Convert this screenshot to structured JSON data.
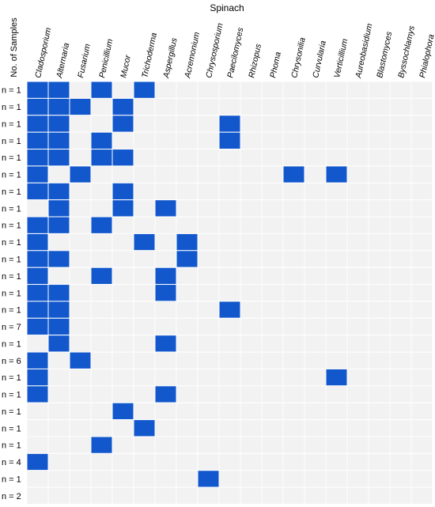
{
  "chart_data": {
    "type": "heatmap",
    "title": "Spinach",
    "ylabel": "No. of Samples",
    "columns": [
      "Cladosporium",
      "Alternaria",
      "Fusarium",
      "Penicillium",
      "Mucor",
      "Trichoderma",
      "Aspergillus",
      "Acremonium",
      "Chrysosporium",
      "Paecilomyces",
      "Rhizopus",
      "Phoma",
      "Chrysonilia",
      "Curvularia",
      "Verticillium",
      "Aureobasidium",
      "Blastomyces",
      "Byssochlamys",
      "Phialophora"
    ],
    "rows": [
      {
        "label": "n = 1",
        "present": [
          1,
          1,
          0,
          1,
          0,
          1,
          0,
          0,
          0,
          0,
          0,
          0,
          0,
          0,
          0,
          0,
          0,
          0,
          0
        ]
      },
      {
        "label": "n = 1",
        "present": [
          1,
          1,
          1,
          0,
          1,
          0,
          0,
          0,
          0,
          0,
          0,
          0,
          0,
          0,
          0,
          0,
          0,
          0,
          0
        ]
      },
      {
        "label": "n = 1",
        "present": [
          1,
          1,
          0,
          0,
          1,
          0,
          0,
          0,
          0,
          1,
          0,
          0,
          0,
          0,
          0,
          0,
          0,
          0,
          0
        ]
      },
      {
        "label": "n = 1",
        "present": [
          1,
          1,
          0,
          1,
          0,
          0,
          0,
          0,
          0,
          1,
          0,
          0,
          0,
          0,
          0,
          0,
          0,
          0,
          0
        ]
      },
      {
        "label": "n = 1",
        "present": [
          1,
          1,
          0,
          1,
          1,
          0,
          0,
          0,
          0,
          0,
          0,
          0,
          0,
          0,
          0,
          0,
          0,
          0,
          0
        ]
      },
      {
        "label": "n = 1",
        "present": [
          1,
          0,
          1,
          0,
          0,
          0,
          0,
          0,
          0,
          0,
          0,
          0,
          1,
          0,
          1,
          0,
          0,
          0,
          0
        ]
      },
      {
        "label": "n = 1",
        "present": [
          1,
          1,
          0,
          0,
          1,
          0,
          0,
          0,
          0,
          0,
          0,
          0,
          0,
          0,
          0,
          0,
          0,
          0,
          0
        ]
      },
      {
        "label": "n = 1",
        "present": [
          0,
          1,
          0,
          0,
          1,
          0,
          1,
          0,
          0,
          0,
          0,
          0,
          0,
          0,
          0,
          0,
          0,
          0,
          0
        ]
      },
      {
        "label": "n = 1",
        "present": [
          1,
          1,
          0,
          1,
          0,
          0,
          0,
          0,
          0,
          0,
          0,
          0,
          0,
          0,
          0,
          0,
          0,
          0,
          0
        ]
      },
      {
        "label": "n = 1",
        "present": [
          1,
          0,
          0,
          0,
          0,
          1,
          0,
          1,
          0,
          0,
          0,
          0,
          0,
          0,
          0,
          0,
          0,
          0,
          0
        ]
      },
      {
        "label": "n = 1",
        "present": [
          1,
          1,
          0,
          0,
          0,
          0,
          0,
          1,
          0,
          0,
          0,
          0,
          0,
          0,
          0,
          0,
          0,
          0,
          0
        ]
      },
      {
        "label": "n = 1",
        "present": [
          1,
          0,
          0,
          1,
          0,
          0,
          1,
          0,
          0,
          0,
          0,
          0,
          0,
          0,
          0,
          0,
          0,
          0,
          0
        ]
      },
      {
        "label": "n = 1",
        "present": [
          1,
          1,
          0,
          0,
          0,
          0,
          1,
          0,
          0,
          0,
          0,
          0,
          0,
          0,
          0,
          0,
          0,
          0,
          0
        ]
      },
      {
        "label": "n = 1",
        "present": [
          1,
          1,
          0,
          0,
          0,
          0,
          0,
          0,
          0,
          1,
          0,
          0,
          0,
          0,
          0,
          0,
          0,
          0,
          0
        ]
      },
      {
        "label": "n = 7",
        "present": [
          1,
          1,
          0,
          0,
          0,
          0,
          0,
          0,
          0,
          0,
          0,
          0,
          0,
          0,
          0,
          0,
          0,
          0,
          0
        ]
      },
      {
        "label": "n = 1",
        "present": [
          0,
          1,
          0,
          0,
          0,
          0,
          1,
          0,
          0,
          0,
          0,
          0,
          0,
          0,
          0,
          0,
          0,
          0,
          0
        ]
      },
      {
        "label": "n = 6",
        "present": [
          1,
          0,
          1,
          0,
          0,
          0,
          0,
          0,
          0,
          0,
          0,
          0,
          0,
          0,
          0,
          0,
          0,
          0,
          0
        ]
      },
      {
        "label": "n = 1",
        "present": [
          1,
          0,
          0,
          0,
          0,
          0,
          0,
          0,
          0,
          0,
          0,
          0,
          0,
          0,
          1,
          0,
          0,
          0,
          0
        ]
      },
      {
        "label": "n = 1",
        "present": [
          1,
          0,
          0,
          0,
          0,
          0,
          1,
          0,
          0,
          0,
          0,
          0,
          0,
          0,
          0,
          0,
          0,
          0,
          0
        ]
      },
      {
        "label": "n = 1",
        "present": [
          0,
          0,
          0,
          0,
          1,
          0,
          0,
          0,
          0,
          0,
          0,
          0,
          0,
          0,
          0,
          0,
          0,
          0,
          0
        ]
      },
      {
        "label": "n = 1",
        "present": [
          0,
          0,
          0,
          0,
          0,
          1,
          0,
          0,
          0,
          0,
          0,
          0,
          0,
          0,
          0,
          0,
          0,
          0,
          0
        ]
      },
      {
        "label": "n = 1",
        "present": [
          0,
          0,
          0,
          1,
          0,
          0,
          0,
          0,
          0,
          0,
          0,
          0,
          0,
          0,
          0,
          0,
          0,
          0,
          0
        ]
      },
      {
        "label": "n = 4",
        "present": [
          1,
          0,
          0,
          0,
          0,
          0,
          0,
          0,
          0,
          0,
          0,
          0,
          0,
          0,
          0,
          0,
          0,
          0,
          0
        ]
      },
      {
        "label": "n = 1",
        "present": [
          0,
          0,
          0,
          0,
          0,
          0,
          0,
          0,
          1,
          0,
          0,
          0,
          0,
          0,
          0,
          0,
          0,
          0,
          0
        ]
      },
      {
        "label": "n = 2",
        "present": [
          0,
          0,
          0,
          0,
          0,
          0,
          0,
          0,
          0,
          0,
          0,
          0,
          0,
          0,
          0,
          0,
          0,
          0,
          0
        ]
      }
    ],
    "colors": {
      "present": "#1257cc",
      "absent": "#f2f2f2",
      "gridline": "#ffffff"
    },
    "legend": "none",
    "grid": true
  }
}
